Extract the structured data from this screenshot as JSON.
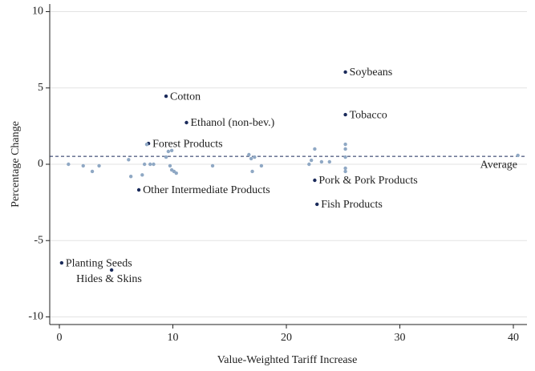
{
  "chart_data": {
    "type": "scatter",
    "x_label": "Value-Weighted Tariff Increase",
    "y_label": "Percentage Change",
    "xlim": [
      -0.85,
      41.2
    ],
    "xticks": [
      0,
      10,
      20,
      30,
      40
    ],
    "ylim": [
      -10.5,
      10.5
    ],
    "yticks": [
      10,
      5,
      0,
      -5,
      -10
    ],
    "grid": true,
    "average": 0.52,
    "average_label": "Average",
    "series": [
      {
        "color": "#1a2a5a",
        "labels": [
          "Soybeans",
          "Tobacco",
          "Cotton",
          "Ethanol (non-bev.)",
          "Forest Products",
          "Other Intermediate Products",
          "Pork & Pork Products",
          "Fish Products",
          "Planting Seeds",
          "Hides & Skins"
        ],
        "x": [
          25.2,
          25.2,
          9.4,
          11.2,
          7.85,
          7.0,
          22.5,
          22.7,
          0.2,
          4.6
        ],
        "y": [
          6.04,
          3.25,
          4.46,
          2.73,
          1.36,
          -1.68,
          -1.05,
          -2.62,
          -6.46,
          -6.93
        ]
      },
      {
        "color": "#8fa8c4",
        "x": [
          0.8,
          2.1,
          2.9,
          3.5,
          6.1,
          6.3,
          7.3,
          7.5,
          7.7,
          8.0,
          8.3,
          9.4,
          9.6,
          9.9,
          9.75,
          9.9,
          10.1,
          10.3,
          13.5,
          16.7,
          16.9,
          17.0,
          17.2,
          17.8,
          22.0,
          22.2,
          22.5,
          23.1,
          23.8,
          25.2,
          25.2,
          25.2,
          25.2,
          25.2,
          40.4
        ],
        "y": [
          0,
          -0.1,
          -0.47,
          -0.1,
          0.3,
          -0.8,
          -0.7,
          0,
          1.3,
          0,
          0,
          0.47,
          0.84,
          0.9,
          -0.1,
          -0.37,
          -0.47,
          -0.58,
          -0.1,
          0.63,
          0.37,
          -0.47,
          0.47,
          -0.1,
          0,
          0.26,
          1.0,
          0.16,
          0.16,
          1.31,
          1.0,
          0.47,
          -0.26,
          -0.47,
          0.58
        ]
      }
    ]
  }
}
